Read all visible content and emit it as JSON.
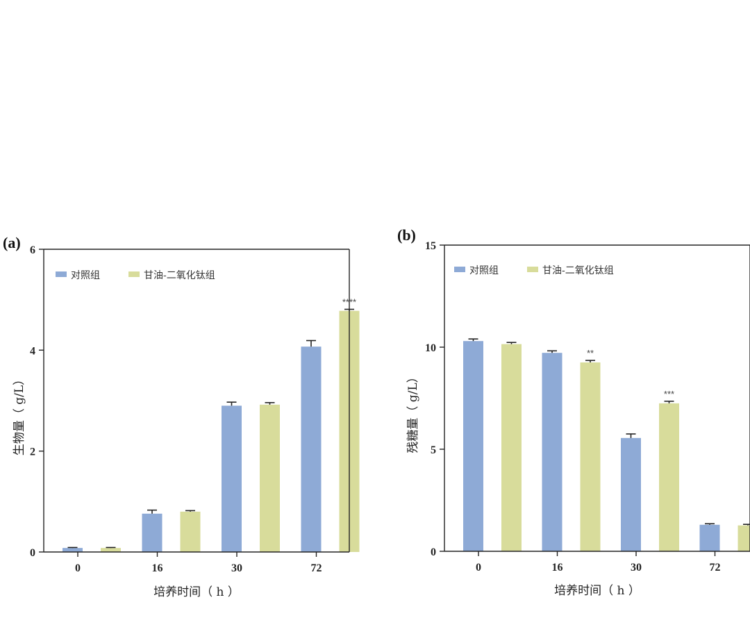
{
  "chart_data": [
    {
      "type": "bar",
      "panel_label": "(a)",
      "title": "",
      "xlabel": "培养时间（ h ）",
      "ylabel": "生物量（ g/L）",
      "categories": [
        "0",
        "16",
        "30",
        "72"
      ],
      "ylim": [
        0,
        6
      ],
      "yticks": [
        0,
        2,
        4,
        6
      ],
      "grid": false,
      "legend_position": "top-left",
      "series": [
        {
          "name": "对照组",
          "color": "#8eaad6",
          "values": [
            0.08,
            0.76,
            2.9,
            4.07
          ],
          "errors": [
            0.01,
            0.07,
            0.07,
            0.12
          ],
          "significance": [
            "",
            "",
            "",
            ""
          ]
        },
        {
          "name": "甘油-二氧化钛组",
          "color": "#d8dc9b",
          "values": [
            0.08,
            0.8,
            2.92,
            4.78
          ],
          "errors": [
            0.01,
            0.02,
            0.04,
            0.03
          ],
          "significance": [
            "",
            "",
            "",
            "****"
          ]
        }
      ]
    },
    {
      "type": "bar",
      "panel_label": "(b)",
      "title": "",
      "xlabel": "培养时间（ h ）",
      "ylabel": "残糖量（ g/L）",
      "categories": [
        "0",
        "16",
        "30",
        "72"
      ],
      "ylim": [
        0,
        15
      ],
      "yticks": [
        0,
        5,
        10,
        15
      ],
      "grid": false,
      "legend_position": "top-left",
      "series": [
        {
          "name": "对照组",
          "color": "#8eaad6",
          "values": [
            10.3,
            9.72,
            5.55,
            1.3
          ],
          "errors": [
            0.1,
            0.1,
            0.2,
            0.05
          ],
          "significance": [
            "",
            "",
            "",
            ""
          ]
        },
        {
          "name": "甘油-二氧化钛组",
          "color": "#d8dc9b",
          "values": [
            10.15,
            9.25,
            7.25,
            1.27
          ],
          "errors": [
            0.08,
            0.1,
            0.1,
            0.05
          ],
          "significance": [
            "",
            "**",
            "***",
            ""
          ]
        }
      ]
    }
  ]
}
